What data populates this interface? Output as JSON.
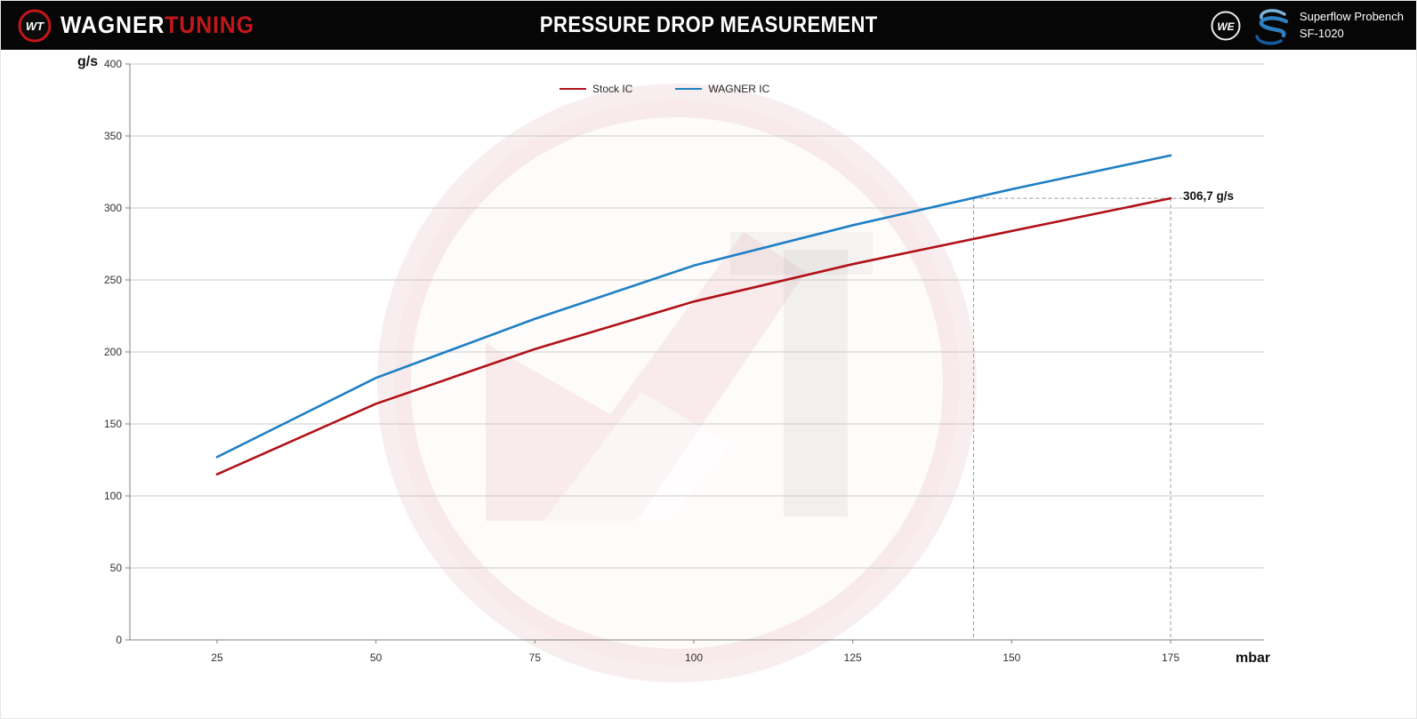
{
  "header": {
    "brand_word1": "WAGNER",
    "brand_word2": "TUNING",
    "title": "PRESSURE DROP MEASUREMENT",
    "we_logo_text": "WE",
    "wt_logo_text": "WT",
    "right_line1": "Superflow Probench",
    "right_line2": "SF-1020"
  },
  "colors": {
    "brand_red": "#c4161c",
    "grid": "#c9c9c9",
    "axis": "#808080",
    "annotation_dash": "#9a9a9a"
  },
  "chart_data": {
    "type": "line",
    "title": "PRESSURE DROP MEASUREMENT",
    "x": [
      25,
      50,
      75,
      100,
      125,
      150,
      175
    ],
    "xticks": [
      25,
      50,
      75,
      100,
      125,
      150,
      175
    ],
    "yticks": [
      0,
      50,
      100,
      150,
      200,
      250,
      300,
      350,
      400
    ],
    "xlabel": "mbar",
    "ylabel": "g/s",
    "xlim": [
      25,
      175
    ],
    "ylim": [
      0,
      400
    ],
    "grid": "horizontal",
    "legend_position": "top-center",
    "series": [
      {
        "name": "Stock IC",
        "color": "#b01218",
        "values": [
          115,
          164,
          202,
          235,
          261,
          284,
          306.7
        ]
      },
      {
        "name": "WAGNER IC",
        "color": "#1e7fc4",
        "values": [
          127,
          182,
          223,
          260,
          288,
          313,
          336.5
        ]
      }
    ],
    "annotation": {
      "label": "306,7 g/s",
      "y": 306.7,
      "x_stock": 175,
      "x_wagner": 144
    }
  }
}
